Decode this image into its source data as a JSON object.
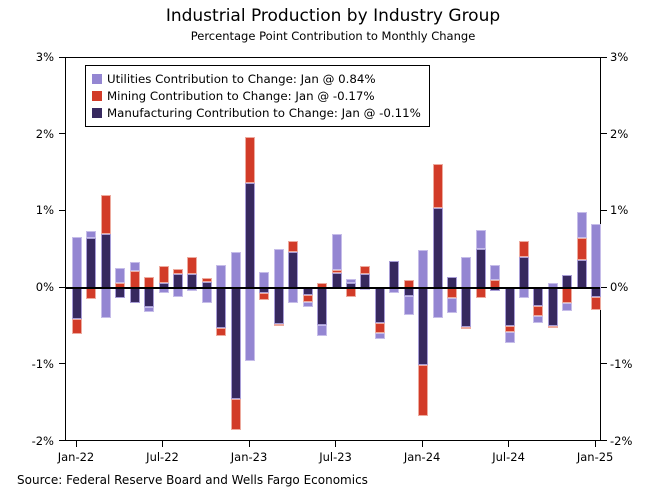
{
  "title": "Industrial Production by Industry Group",
  "subtitle": "Percentage Point Contribution to Monthly Change",
  "source_note": "Source: Federal Reserve Board and Wells Fargo Economics",
  "colors": {
    "utilities": "#9486d2",
    "utilities_edge": "#c6bde9",
    "mining": "#d23b28",
    "mining_edge": "#edab9f",
    "manufacturing": "#37295f",
    "manufacturing_edge": "#a89dd6",
    "axis": "#000000"
  },
  "legend": [
    {
      "series": "utilities",
      "label": "Utilities Contribution to Change: Jan @ 0.84%"
    },
    {
      "series": "mining",
      "label": "Mining Contribution to Change: Jan @ -0.17%"
    },
    {
      "series": "manufacturing",
      "label": "Manufacturing Contribution to Change: Jan @ -0.11%"
    }
  ],
  "y_axis": {
    "min": -2,
    "max": 3,
    "tick_values": [
      3,
      2,
      1,
      0,
      -1,
      -2
    ],
    "tick_labels": [
      "3%",
      "2%",
      "1%",
      "0%",
      "-1%",
      "-2%"
    ]
  },
  "x_axis": {
    "tick_labels": [
      "Jan-22",
      "Jul-22",
      "Jan-23",
      "Jul-23",
      "Jan-24",
      "Jul-24",
      "Jan-25"
    ],
    "tick_month_indices": [
      0,
      6,
      12,
      18,
      24,
      30,
      36
    ]
  },
  "chart_data": {
    "type": "bar",
    "stacked": true,
    "grid": false,
    "legend_position": "upper-left",
    "ylim": [
      -2,
      3
    ],
    "x": [
      "Jan-22",
      "Feb-22",
      "Mar-22",
      "Apr-22",
      "May-22",
      "Jun-22",
      "Jul-22",
      "Aug-22",
      "Sep-22",
      "Oct-22",
      "Nov-22",
      "Dec-22",
      "Jan-23",
      "Feb-23",
      "Mar-23",
      "Apr-23",
      "May-23",
      "Jun-23",
      "Jul-23",
      "Aug-23",
      "Sep-23",
      "Oct-23",
      "Nov-23",
      "Dec-23",
      "Jan-24",
      "Feb-24",
      "Mar-24",
      "Apr-24",
      "May-24",
      "Jun-24",
      "Jul-24",
      "Aug-24",
      "Sep-24",
      "Oct-24",
      "Nov-24",
      "Dec-24",
      "Jan-25"
    ],
    "series": [
      {
        "name": "Manufacturing",
        "key": "manufacturing",
        "values": [
          -0.4,
          0.65,
          0.7,
          -0.13,
          -0.19,
          -0.25,
          0.07,
          0.18,
          0.18,
          0.08,
          -0.52,
          -1.45,
          1.37,
          -0.07,
          -0.47,
          0.47,
          -0.09,
          -0.48,
          0.2,
          0.07,
          0.18,
          -0.45,
          0.35,
          -0.1,
          -1.0,
          1.05,
          0.14,
          -0.51,
          0.51,
          -0.04,
          -0.5,
          0.41,
          -0.23,
          -0.49,
          0.17,
          0.37,
          -0.11
        ]
      },
      {
        "name": "Mining",
        "key": "mining",
        "values": [
          -0.2,
          -0.14,
          0.52,
          0.06,
          0.22,
          0.14,
          0.22,
          0.07,
          0.22,
          0.05,
          -0.1,
          -0.4,
          0.6,
          -0.08,
          -0.02,
          0.15,
          -0.09,
          0.07,
          0.04,
          -0.11,
          0.11,
          -0.14,
          0.0,
          0.1,
          -0.67,
          0.57,
          -0.13,
          -0.02,
          -0.13,
          0.11,
          -0.07,
          0.2,
          -0.14,
          -0.03,
          -0.2,
          0.28,
          -0.17
        ]
      },
      {
        "name": "Utilities",
        "key": "utilities",
        "values": [
          0.66,
          0.1,
          -0.39,
          0.2,
          0.12,
          -0.06,
          -0.07,
          -0.12,
          -0.04,
          -0.19,
          0.3,
          0.47,
          -0.95,
          0.21,
          0.51,
          -0.2,
          -0.07,
          -0.15,
          0.46,
          0.05,
          -0.02,
          -0.07,
          -0.06,
          -0.25,
          0.5,
          -0.39,
          -0.2,
          0.4,
          0.25,
          0.19,
          -0.14,
          -0.13,
          -0.09,
          0.06,
          -0.1,
          0.34,
          0.84
        ]
      }
    ]
  }
}
